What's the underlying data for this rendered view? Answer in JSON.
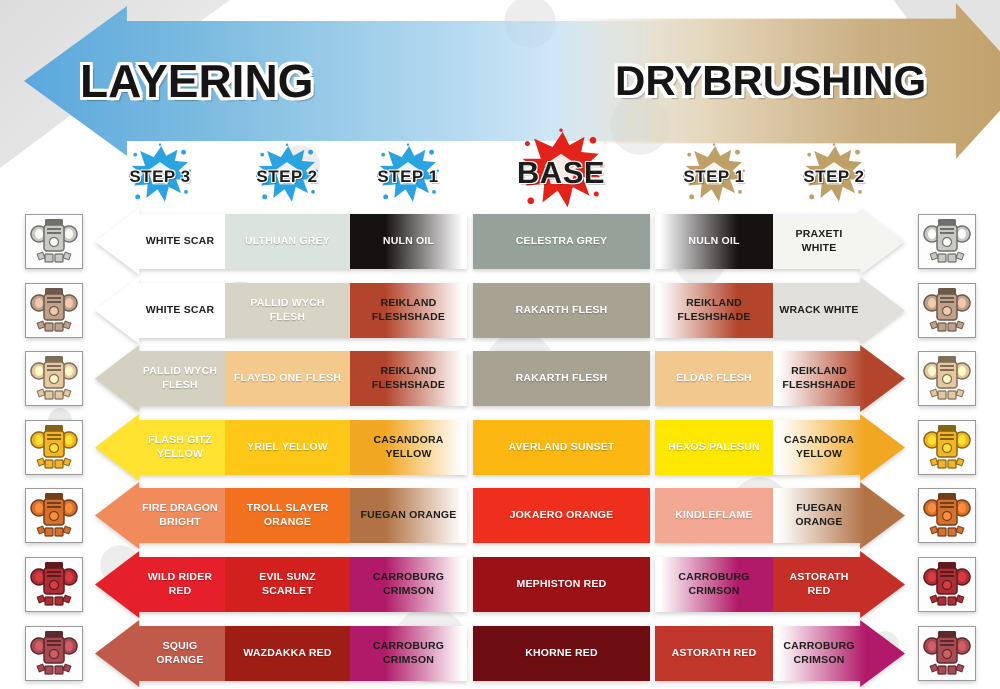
{
  "banner": {
    "layering_label": "LAYERING",
    "drybrushing_label": "DRYBRUSHING",
    "layering_color": "#5ba8de",
    "drybrushing_color": "#c1a067"
  },
  "headers": [
    {
      "label": "STEP 3",
      "splat_color": "#2ba3e0"
    },
    {
      "label": "STEP 2",
      "splat_color": "#2ba3e0"
    },
    {
      "label": "STEP 1",
      "splat_color": "#2ba3e0"
    },
    {
      "label": "BASE",
      "splat_color": "#e2231a"
    },
    {
      "label": "STEP 1",
      "splat_color": "#bfa069"
    },
    {
      "label": "STEP 2",
      "splat_color": "#bfa069"
    }
  ],
  "rows": [
    {
      "miniature_color": "#c9cac5",
      "cells": [
        {
          "name": "WHITE SCAR",
          "hex": "#ffffff",
          "text": "#1d1d1b"
        },
        {
          "name": "ULTHUAN GREY",
          "hex": "#dae3de",
          "text": "#ffffff"
        },
        {
          "name": "NULN OIL",
          "hex": "#171212",
          "text": "#ffffff",
          "fade": "right"
        },
        {
          "name": "CELESTRA GREY",
          "hex": "#96a19a",
          "text": "#ffffff"
        },
        {
          "name": "NULN OIL",
          "hex": "#171212",
          "text": "#ffffff",
          "fade": "left"
        },
        {
          "name": "PRAXETI WHITE",
          "hex": "#f4f4f1",
          "text": "#1d1d1b"
        }
      ]
    },
    {
      "miniature_color": "#c0a18b",
      "cells": [
        {
          "name": "WHITE SCAR",
          "hex": "#ffffff",
          "text": "#1d1d1b"
        },
        {
          "name": "PALLID WYCH FLESH",
          "hex": "#d7d4c5",
          "text": "#ffffff"
        },
        {
          "name": "REIKLAND FLESHSHADE",
          "hex": "#b2452b",
          "text": "#1d1d1b",
          "fade": "right"
        },
        {
          "name": "RAKARTH FLESH",
          "hex": "#a7a291",
          "text": "#ffffff"
        },
        {
          "name": "REIKLAND FLESHSHADE",
          "hex": "#b2452b",
          "text": "#1d1d1b",
          "fade": "left"
        },
        {
          "name": "WRACK WHITE",
          "hex": "#e2e0dd",
          "text": "#1d1d1b"
        }
      ]
    },
    {
      "miniature_color": "#e5c8a0",
      "cells": [
        {
          "name": "PALLID WYCH FLESH",
          "hex": "#d4d1c2",
          "text": "#ffffff"
        },
        {
          "name": "FLAYED ONE FLESH",
          "hex": "#f4c98c",
          "text": "#ffffff"
        },
        {
          "name": "REIKLAND FLESHSHADE",
          "hex": "#b2452b",
          "text": "#1d1d1b",
          "fade": "right"
        },
        {
          "name": "RAKARTH FLESH",
          "hex": "#a7a291",
          "text": "#ffffff"
        },
        {
          "name": "ELDAR FLESH",
          "hex": "#f3c88f",
          "text": "#ffffff"
        },
        {
          "name": "REIKLAND FLESHSHADE",
          "hex": "#b2452b",
          "text": "#1d1d1b",
          "fade": "left"
        }
      ]
    },
    {
      "miniature_color": "#f1b527",
      "cells": [
        {
          "name": "FLASH GITZ YELLOW",
          "hex": "#ffe330",
          "text": "#ffffff"
        },
        {
          "name": "YRIEL YELLOW",
          "hex": "#ffc717",
          "text": "#ffffff"
        },
        {
          "name": "CASANDORA YELLOW",
          "hex": "#f1a722",
          "text": "#1d1d1b",
          "fade": "right"
        },
        {
          "name": "AVERLAND SUNSET",
          "hex": "#fcb712",
          "text": "#ffffff"
        },
        {
          "name": "HEXOS PALESUN",
          "hex": "#ffe800",
          "text": "#ffffff"
        },
        {
          "name": "CASANDORA YELLOW",
          "hex": "#f1a722",
          "text": "#1d1d1b",
          "fade": "left"
        }
      ]
    },
    {
      "miniature_color": "#d4712f",
      "cells": [
        {
          "name": "FIRE DRAGON BRIGHT",
          "hex": "#f28b5c",
          "text": "#ffffff"
        },
        {
          "name": "TROLL SLAYER ORANGE",
          "hex": "#f2711f",
          "text": "#ffffff"
        },
        {
          "name": "FUEGAN ORANGE",
          "hex": "#b17245",
          "text": "#1d1d1b",
          "fade": "right"
        },
        {
          "name": "JOKAERO ORANGE",
          "hex": "#ee2f1d",
          "text": "#ffffff"
        },
        {
          "name": "KINDLEFLAME",
          "hex": "#f3a893",
          "text": "#ffffff"
        },
        {
          "name": "FUEGAN ORANGE",
          "hex": "#b17245",
          "text": "#1d1d1b",
          "fade": "left"
        }
      ]
    },
    {
      "miniature_color": "#ad2f36",
      "cells": [
        {
          "name": "WILD RIDER RED",
          "hex": "#e6202a",
          "text": "#ffffff"
        },
        {
          "name": "EVIL SUNZ SCARLET",
          "hex": "#d2201f",
          "text": "#ffffff"
        },
        {
          "name": "CARROBURG CRIMSON",
          "hex": "#b11a68",
          "text": "#1d1d1b",
          "fade": "right"
        },
        {
          "name": "MEPHISTON RED",
          "hex": "#9b1116",
          "text": "#ffffff"
        },
        {
          "name": "CARROBURG CRIMSON",
          "hex": "#b11a68",
          "text": "#1d1d1b",
          "fade": "left"
        },
        {
          "name": "ASTORATH RED",
          "hex": "#c62f27",
          "text": "#ffffff"
        }
      ]
    },
    {
      "miniature_color": "#a84b52",
      "cells": [
        {
          "name": "SQUIG ORANGE",
          "hex": "#c05a4b",
          "text": "#ffffff"
        },
        {
          "name": "WAZDAKKA RED",
          "hex": "#9e1d15",
          "text": "#ffffff"
        },
        {
          "name": "CARROBURG CRIMSON",
          "hex": "#b11a68",
          "text": "#1d1d1b",
          "fade": "right"
        },
        {
          "name": "KHORNE RED",
          "hex": "#6d0d11",
          "text": "#ffffff"
        },
        {
          "name": "ASTORATH RED",
          "hex": "#c2372c",
          "text": "#ffffff"
        },
        {
          "name": "CARROBURG CRIMSON",
          "hex": "#b11a68",
          "text": "#1d1d1b",
          "fade": "left"
        }
      ]
    }
  ]
}
